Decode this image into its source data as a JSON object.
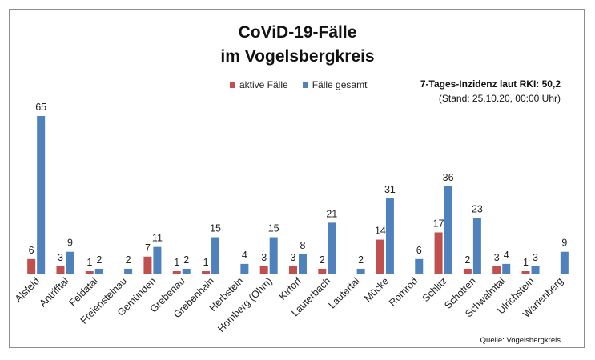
{
  "chart_data": {
    "type": "bar",
    "title": "CoViD-19-Fälle\nim Vogelsbergkreis",
    "categories": [
      "Alsfeld",
      "Antrifftal",
      "Feldatal",
      "Freiensteinau",
      "Gemünden",
      "Grebenau",
      "Grebenhain",
      "Herbstein",
      "Homberg (Ohm)",
      "Kirtorf",
      "Lauterbach",
      "Lautertal",
      "Mücke",
      "Romrod",
      "Schlitz",
      "Schotten",
      "Schwalmtal",
      "Ulrichstein",
      "Wartenberg"
    ],
    "series": [
      {
        "name": "aktive Fälle",
        "color": "#c0504d",
        "values": [
          6,
          3,
          1,
          null,
          7,
          1,
          1,
          null,
          3,
          3,
          2,
          null,
          14,
          null,
          17,
          2,
          3,
          1,
          null
        ]
      },
      {
        "name": "Fälle gesamt",
        "color": "#4f81bd",
        "values": [
          65,
          9,
          2,
          2,
          11,
          2,
          15,
          4,
          15,
          8,
          21,
          2,
          31,
          6,
          36,
          23,
          4,
          3,
          9
        ]
      }
    ],
    "ylim": [
      0,
      65
    ],
    "grid": false,
    "legend_position": "top-center",
    "xlabel": "",
    "ylabel": ""
  },
  "annotation": {
    "incidence": "7-Tages-Inzidenz laut RKI: 50,2",
    "stand": "(Stand: 25.10.20, 00:00 Uhr)"
  },
  "source": "Quelle: Vogelsbergkreis"
}
